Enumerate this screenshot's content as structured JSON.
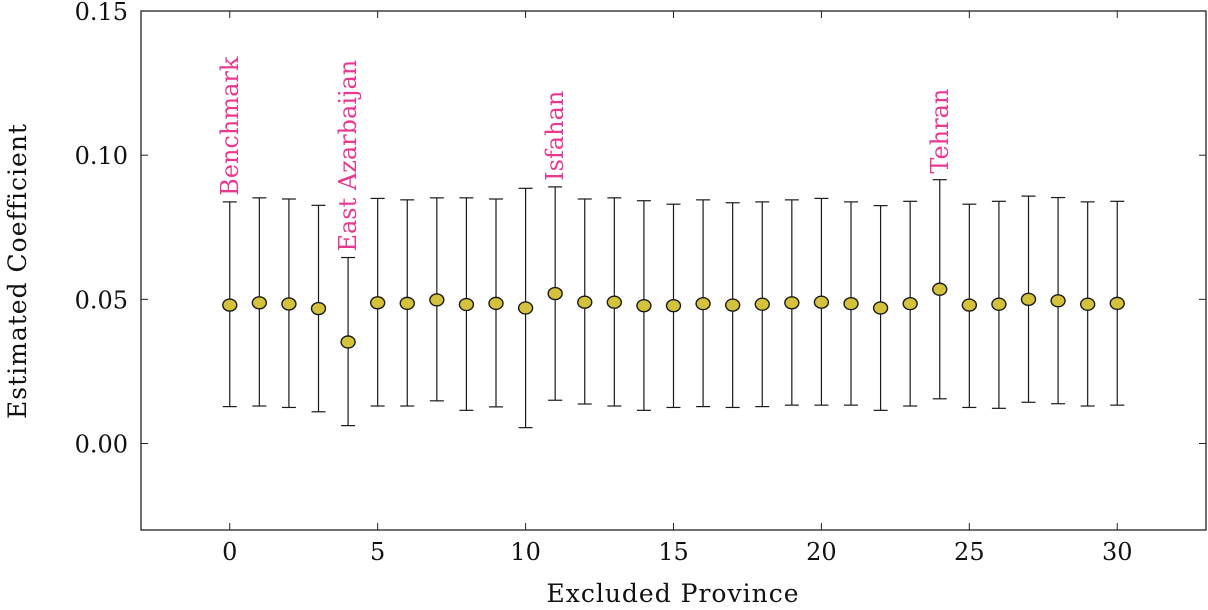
{
  "chart_data": {
    "type": "scatter",
    "xlabel": "Excluded Province",
    "ylabel": "Estimated Coefficient",
    "xlim": [
      -3,
      33
    ],
    "ylim": [
      -0.03,
      0.15
    ],
    "xticks": [
      0,
      5,
      10,
      15,
      20,
      25,
      30
    ],
    "yticks": [
      "0.00",
      "0.05",
      "0.10",
      "0.15"
    ],
    "grid": false,
    "marker_color": "#d4c13c",
    "annotation_color": "#e8388f",
    "points": [
      {
        "x": 0,
        "y": 0.048,
        "low": 0.0128,
        "high": 0.0838
      },
      {
        "x": 1,
        "y": 0.0488,
        "low": 0.013,
        "high": 0.0852
      },
      {
        "x": 2,
        "y": 0.0484,
        "low": 0.0125,
        "high": 0.0848
      },
      {
        "x": 3,
        "y": 0.0468,
        "low": 0.011,
        "high": 0.0826
      },
      {
        "x": 4,
        "y": 0.0352,
        "low": 0.0062,
        "high": 0.0645
      },
      {
        "x": 5,
        "y": 0.0488,
        "low": 0.013,
        "high": 0.085
      },
      {
        "x": 6,
        "y": 0.0486,
        "low": 0.013,
        "high": 0.0845
      },
      {
        "x": 7,
        "y": 0.0498,
        "low": 0.0148,
        "high": 0.0852
      },
      {
        "x": 8,
        "y": 0.0482,
        "low": 0.0115,
        "high": 0.0852
      },
      {
        "x": 9,
        "y": 0.0486,
        "low": 0.0127,
        "high": 0.0848
      },
      {
        "x": 10,
        "y": 0.047,
        "low": 0.0055,
        "high": 0.0885
      },
      {
        "x": 11,
        "y": 0.052,
        "low": 0.015,
        "high": 0.089
      },
      {
        "x": 12,
        "y": 0.049,
        "low": 0.0137,
        "high": 0.0848
      },
      {
        "x": 13,
        "y": 0.049,
        "low": 0.013,
        "high": 0.0852
      },
      {
        "x": 14,
        "y": 0.0478,
        "low": 0.0115,
        "high": 0.0842
      },
      {
        "x": 15,
        "y": 0.0478,
        "low": 0.0125,
        "high": 0.083
      },
      {
        "x": 16,
        "y": 0.0485,
        "low": 0.0128,
        "high": 0.0845
      },
      {
        "x": 17,
        "y": 0.048,
        "low": 0.0125,
        "high": 0.0835
      },
      {
        "x": 18,
        "y": 0.0483,
        "low": 0.0128,
        "high": 0.0838
      },
      {
        "x": 19,
        "y": 0.0488,
        "low": 0.0133,
        "high": 0.0845
      },
      {
        "x": 20,
        "y": 0.049,
        "low": 0.0133,
        "high": 0.085
      },
      {
        "x": 21,
        "y": 0.0485,
        "low": 0.0133,
        "high": 0.0838
      },
      {
        "x": 22,
        "y": 0.047,
        "low": 0.0115,
        "high": 0.0825
      },
      {
        "x": 23,
        "y": 0.0485,
        "low": 0.013,
        "high": 0.084
      },
      {
        "x": 24,
        "y": 0.0535,
        "low": 0.0155,
        "high": 0.0915
      },
      {
        "x": 25,
        "y": 0.048,
        "low": 0.0125,
        "high": 0.083
      },
      {
        "x": 26,
        "y": 0.0483,
        "low": 0.0122,
        "high": 0.084
      },
      {
        "x": 27,
        "y": 0.05,
        "low": 0.0143,
        "high": 0.0858
      },
      {
        "x": 28,
        "y": 0.0495,
        "low": 0.0138,
        "high": 0.0853
      },
      {
        "x": 29,
        "y": 0.0483,
        "low": 0.013,
        "high": 0.0838
      },
      {
        "x": 30,
        "y": 0.0486,
        "low": 0.0133,
        "high": 0.084
      }
    ],
    "annotations": [
      {
        "x": 0,
        "text": "Benchmark"
      },
      {
        "x": 4,
        "text": "East Azarbaijan"
      },
      {
        "x": 11,
        "text": "Isfahan"
      },
      {
        "x": 24,
        "text": "Tehran"
      }
    ]
  }
}
